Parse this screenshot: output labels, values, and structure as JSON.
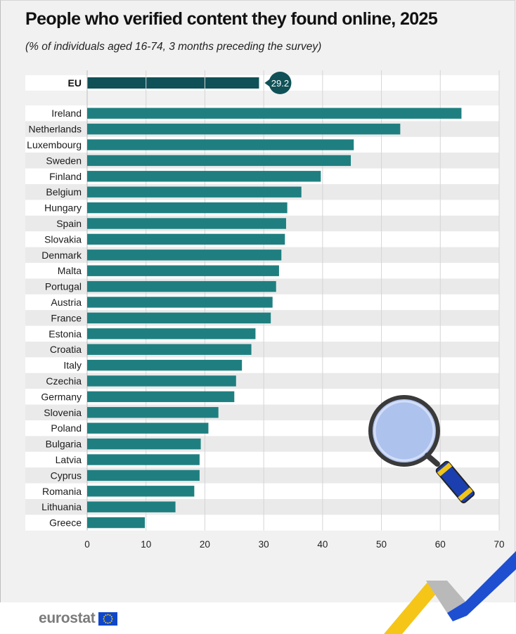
{
  "title": "People who verified content they found online, 2025",
  "subtitle": "(% of individuals aged 16-74, 3 months preceding the survey)",
  "logo_text": "eurostat",
  "colors": {
    "bar": "#1f7f80",
    "eu_bar": "#0f5157",
    "eu_badge": "#0f5157",
    "row_white": "#ffffff",
    "row_grey": "#eaeaea",
    "grid": "#d5d5d5"
  },
  "icons": [
    "magnifying-glass-icon",
    "eu-flag-icon",
    "corner-chevron-decoration"
  ],
  "chart_data": {
    "type": "bar",
    "orientation": "horizontal",
    "title": "People who verified content they found online, 2025",
    "subtitle": "(% of individuals aged 16-74, 3 months preceding the survey)",
    "xlim": [
      0,
      70
    ],
    "xticks": [
      0,
      10,
      20,
      30,
      40,
      50,
      60,
      70
    ],
    "grid": true,
    "highlight": {
      "category": "EU",
      "value": 29.2,
      "label": "29.2"
    },
    "categories": [
      "Ireland",
      "Netherlands",
      "Luxembourg",
      "Sweden",
      "Finland",
      "Belgium",
      "Hungary",
      "Spain",
      "Slovakia",
      "Denmark",
      "Malta",
      "Portugal",
      "Austria",
      "France",
      "Estonia",
      "Croatia",
      "Italy",
      "Czechia",
      "Germany",
      "Slovenia",
      "Poland",
      "Bulgaria",
      "Latvia",
      "Cyprus",
      "Romania",
      "Lithuania",
      "Greece"
    ],
    "values": [
      63.6,
      53.2,
      45.3,
      44.8,
      39.7,
      36.4,
      34.0,
      33.8,
      33.6,
      33.0,
      32.6,
      32.1,
      31.5,
      31.2,
      28.6,
      27.9,
      26.3,
      25.3,
      25.0,
      22.3,
      20.6,
      19.3,
      19.1,
      19.1,
      18.2,
      15.0,
      9.8
    ]
  }
}
